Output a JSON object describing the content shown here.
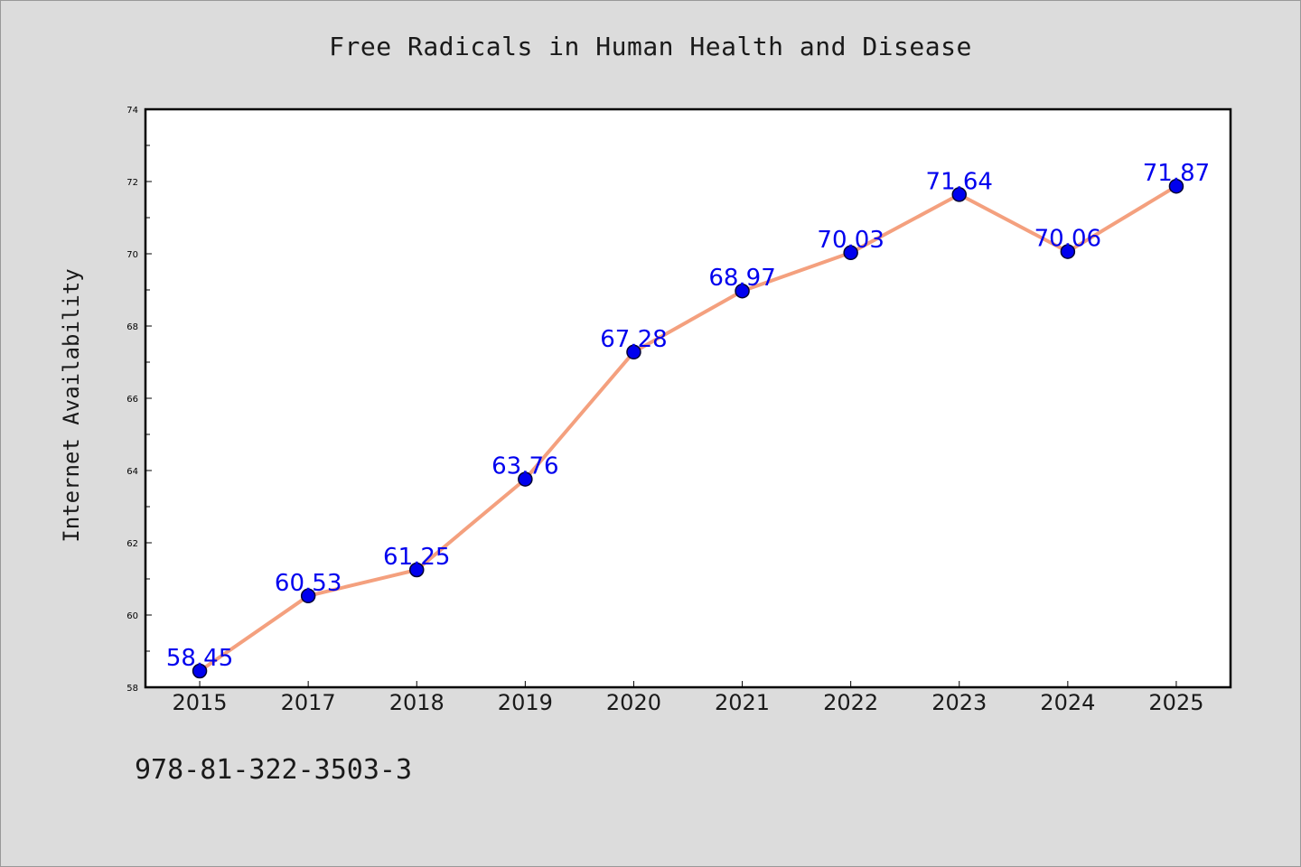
{
  "chart_data": {
    "type": "line",
    "title": "Free Radicals in Human Health and Disease",
    "ylabel": "Internet Availability",
    "xlabel": "",
    "categories": [
      "2015",
      "2017",
      "2018",
      "2019",
      "2020",
      "2021",
      "2022",
      "2023",
      "2024",
      "2025"
    ],
    "values": [
      58.45,
      60.53,
      61.25,
      63.76,
      67.28,
      68.97,
      70.03,
      71.64,
      70.06,
      71.87
    ],
    "data_labels": [
      "58.45",
      "60.53",
      "61.25",
      "63.76",
      "67.28",
      "68.97",
      "70.03",
      "71.64",
      "70.06",
      "71.87"
    ],
    "ylim": [
      58,
      74
    ],
    "yticks": [
      "58",
      "60",
      "62",
      "64",
      "66",
      "68",
      "70",
      "72",
      "74"
    ],
    "grid": false,
    "line_color": "#f4a07e",
    "marker_color": "#0000ee",
    "label_color": "#0000ee"
  },
  "footer": {
    "isbn": "978-81-322-3503-3"
  }
}
